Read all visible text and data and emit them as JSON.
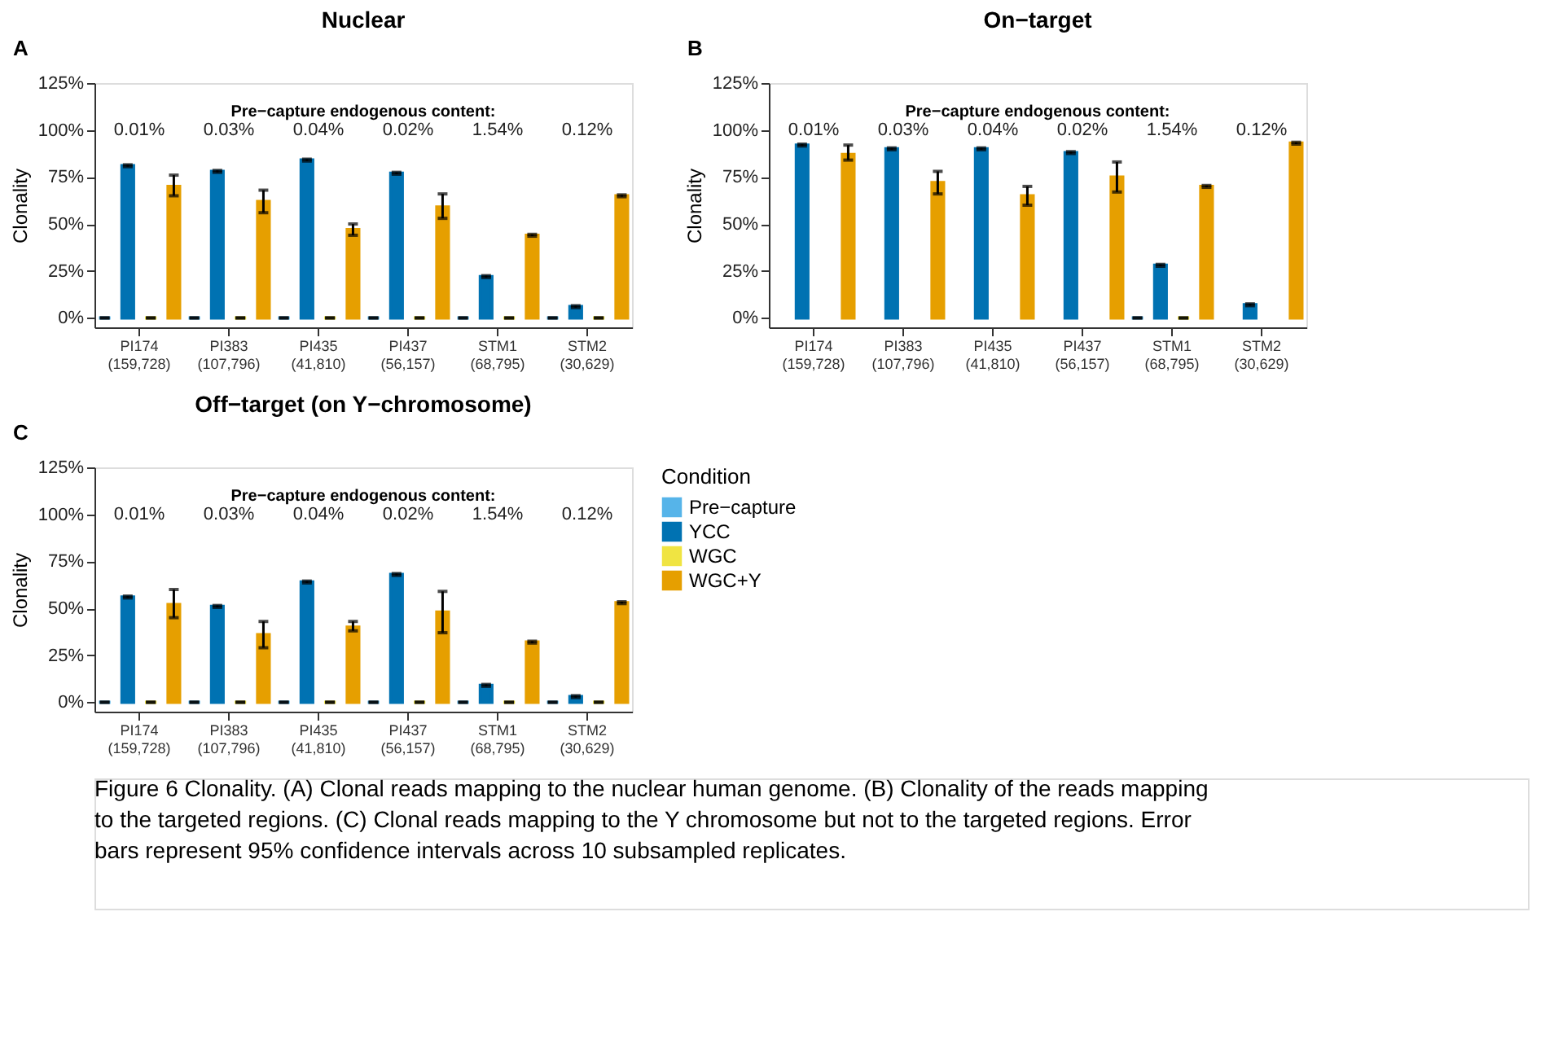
{
  "chart_data": [
    {
      "type": "bar",
      "title": "Nuclear",
      "ylabel": "Clonality",
      "categories": [
        "PI174\n(159,728)",
        "PI383\n(107,796)",
        "PI435\n(41,810)",
        "PI437\n(56,157)",
        "STM1\n(68,795)",
        "STM2\n(30,629)"
      ],
      "ylim": [
        -5,
        125
      ],
      "yticks": [
        {
          "value": 0,
          "label": "0%"
        },
        {
          "value": 25,
          "label": "25%"
        },
        {
          "value": 50,
          "label": "50%"
        },
        {
          "value": 75,
          "label": "75%"
        },
        {
          "value": 100,
          "label": "100%"
        },
        {
          "value": 125,
          "label": "125%"
        }
      ],
      "legend": false,
      "series": [
        {
          "color": "#56b4e9",
          "values": [
            0,
            0,
            0,
            0,
            0,
            0
          ],
          "errors": [
            0,
            0,
            0,
            0,
            0,
            0
          ]
        },
        {
          "color": "#0072b2",
          "values": [
            81,
            78,
            84,
            77,
            22,
            6
          ],
          "errors": [
            0.5,
            0.5,
            0.5,
            0.5,
            0.5,
            0.5
          ]
        },
        {
          "color": "#f0e442",
          "values": [
            0,
            0,
            0,
            0,
            0,
            0
          ],
          "errors": [
            0,
            0,
            0,
            0,
            0,
            0
          ]
        },
        {
          "color": "#e69f00",
          "values": [
            70,
            62,
            47,
            59,
            44,
            65
          ],
          "errors": [
            [
              65,
              76
            ],
            [
              56,
              68
            ],
            [
              44,
              50
            ],
            [
              53,
              66
            ],
            0.5,
            0.5
          ]
        }
      ],
      "annotations": [
        "A",
        "Pre−capture endogenous content:",
        "0.01%",
        "0.03%",
        "0.04%",
        "0.02%",
        "1.54%",
        "0.12%"
      ]
    },
    {
      "type": "bar",
      "title": "On−target",
      "ylabel": "Clonality",
      "categories": [
        "PI174\n(159,728)",
        "PI383\n(107,796)",
        "PI435\n(41,810)",
        "PI437\n(56,157)",
        "STM1\n(68,795)",
        "STM2\n(30,629)"
      ],
      "ylim": [
        -5,
        125
      ],
      "yticks": [
        {
          "value": 0,
          "label": "0%"
        },
        {
          "value": 25,
          "label": "25%"
        },
        {
          "value": 50,
          "label": "50%"
        },
        {
          "value": 75,
          "label": "75%"
        },
        {
          "value": 100,
          "label": "100%"
        },
        {
          "value": 125,
          "label": "125%"
        }
      ],
      "legend": false,
      "series": [
        {
          "color": "#56b4e9",
          "values": [
            null,
            null,
            null,
            null,
            0,
            null
          ],
          "errors": [
            null,
            null,
            null,
            null,
            0,
            null
          ]
        },
        {
          "color": "#0072b2",
          "values": [
            92,
            90,
            90,
            88,
            28,
            7
          ],
          "errors": [
            0.5,
            0.5,
            0.5,
            0.5,
            0.5,
            0.5
          ]
        },
        {
          "color": "#f0e442",
          "values": [
            null,
            null,
            null,
            null,
            0,
            null
          ],
          "errors": [
            null,
            null,
            null,
            null,
            0,
            null
          ]
        },
        {
          "color": "#e69f00",
          "values": [
            87,
            72,
            65,
            75,
            70,
            93
          ],
          "errors": [
            [
              84,
              92
            ],
            [
              66,
              78
            ],
            [
              60,
              70
            ],
            [
              67,
              83
            ],
            0.5,
            0.5
          ]
        }
      ],
      "annotations": [
        "B",
        "Pre−capture endogenous content:",
        "0.01%",
        "0.03%",
        "0.04%",
        "0.02%",
        "1.54%",
        "0.12%"
      ]
    },
    {
      "type": "bar",
      "title": "Off−target (on Y−chromosome)",
      "ylabel": "Clonality",
      "legend_title": "Condition",
      "categories": [
        "PI174\n(159,728)",
        "PI383\n(107,796)",
        "PI435\n(41,810)",
        "PI437\n(56,157)",
        "STM1\n(68,795)",
        "STM2\n(30,629)"
      ],
      "ylim": [
        -5,
        125
      ],
      "yticks": [
        {
          "value": 0,
          "label": "0%"
        },
        {
          "value": 25,
          "label": "25%"
        },
        {
          "value": 50,
          "label": "50%"
        },
        {
          "value": 75,
          "label": "75%"
        },
        {
          "value": 100,
          "label": "100%"
        },
        {
          "value": 125,
          "label": "125%"
        }
      ],
      "legend": "right",
      "series": [
        {
          "name": "Pre−capture",
          "color": "#56b4e9",
          "values": [
            0,
            0,
            0,
            0,
            0,
            0
          ],
          "errors": [
            0,
            0,
            0,
            0,
            0,
            0
          ]
        },
        {
          "name": "YCC",
          "color": "#0072b2",
          "values": [
            56,
            51,
            64,
            68,
            9,
            3
          ],
          "errors": [
            0.5,
            0.5,
            0.5,
            0.5,
            0.5,
            0.5
          ]
        },
        {
          "name": "WGC",
          "color": "#f0e442",
          "values": [
            0,
            0,
            0,
            0,
            0,
            0
          ],
          "errors": [
            0,
            0,
            0,
            0,
            0,
            0
          ]
        },
        {
          "name": "WGC+Y",
          "color": "#e69f00",
          "values": [
            52,
            36,
            40,
            48,
            32,
            53
          ],
          "errors": [
            [
              45,
              60
            ],
            [
              29,
              43
            ],
            [
              38,
              43
            ],
            [
              37,
              59
            ],
            0.5,
            0.5
          ]
        }
      ],
      "annotations": [
        "C",
        "Pre−capture endogenous content:",
        "0.01%",
        "0.03%",
        "0.04%",
        "0.02%",
        "1.54%",
        "0.12%",
        "Figure 6 Clonality. (A) Clonal reads mapping to the nuclear human genome. (B) Clonality of the reads mapping to the targeted regions. (C) Clonal reads mapping to the Y chromosome but not to the targeted regions. Error bars represent 95% confidence intervals across 10 subsampled replicates."
      ]
    }
  ]
}
